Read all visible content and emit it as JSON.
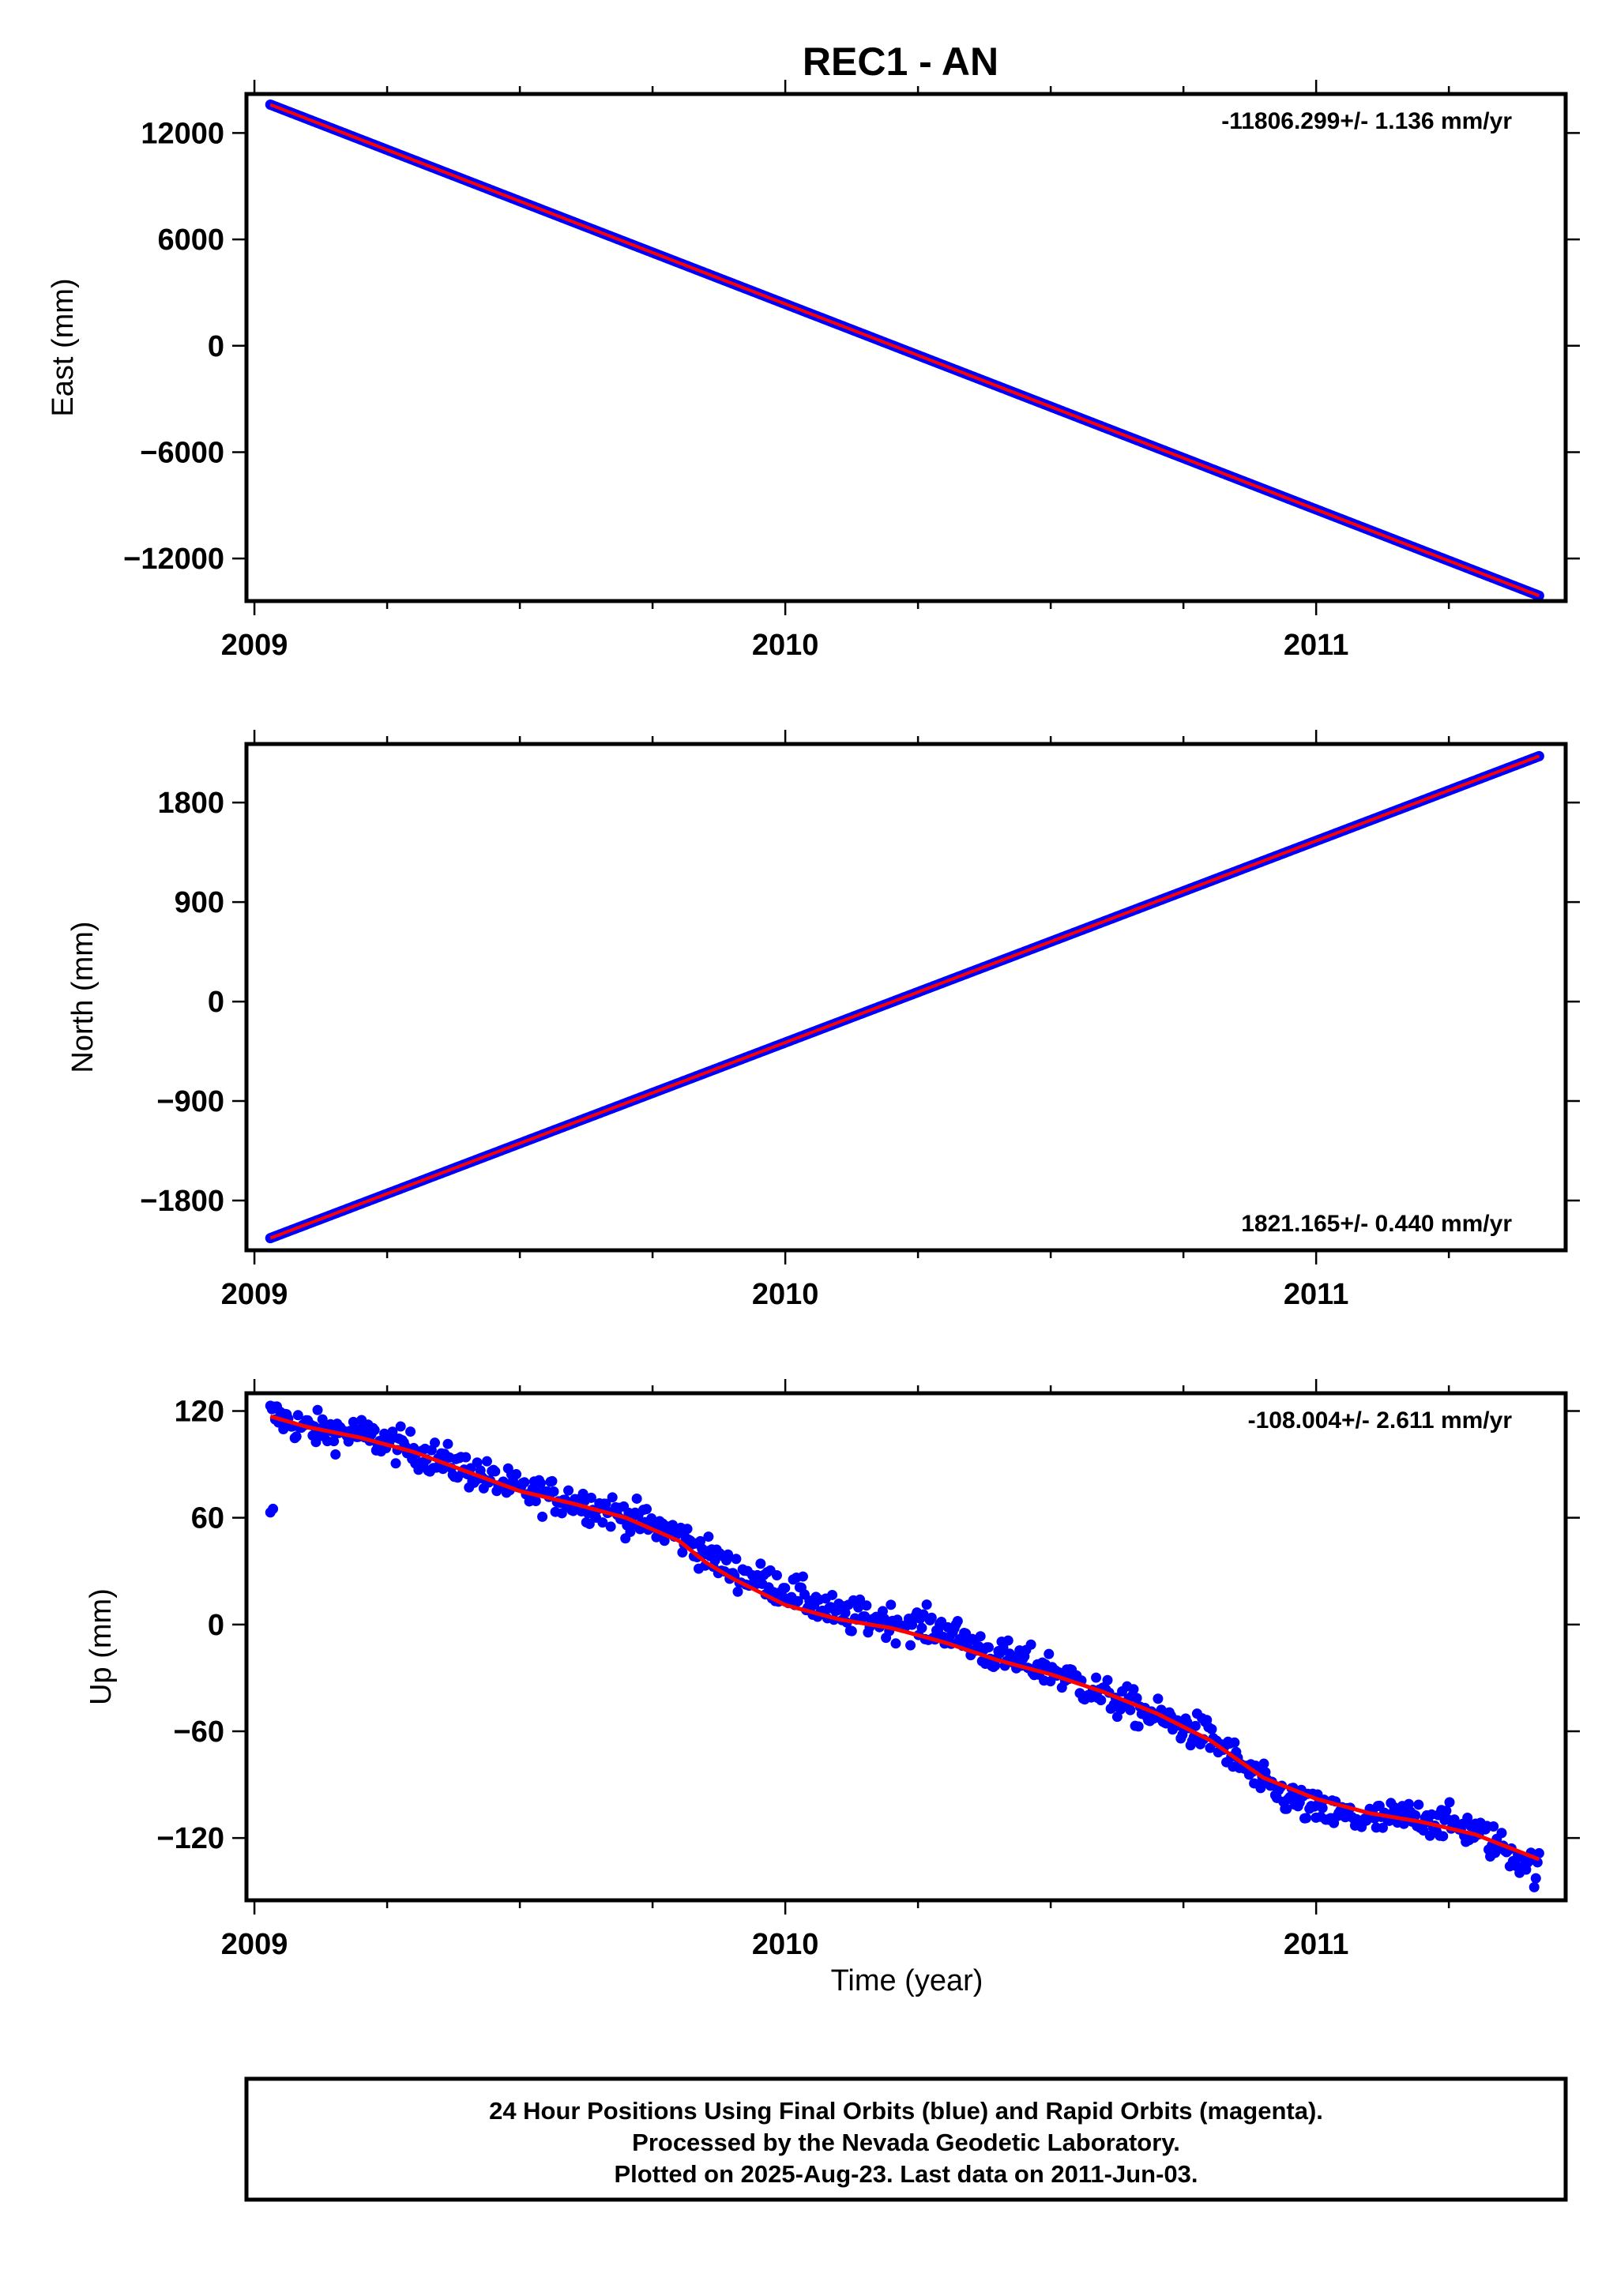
{
  "figure": {
    "title": "REC1 - AN",
    "xlabel": "Time (year)",
    "footer_lines": [
      "24 Hour Positions Using Final Orbits (blue) and Rapid Orbits (magenta).",
      "Processed by the Nevada Geodetic Laboratory.",
      "Plotted on 2025-Aug-23. Last data on 2011-Jun-03."
    ],
    "colors": {
      "data_points": "#0000ff",
      "model_line": "#ff0000",
      "frame": "#000000"
    }
  },
  "chart_data": [
    {
      "type": "scatter",
      "title": "REC1 - AN",
      "ylabel": "East (mm)",
      "rate_label": "-11806.299+/- 1.136 mm/yr",
      "rate_position": "top-right",
      "xlim": [
        2008.985,
        2011.47
      ],
      "ylim": [
        -14400,
        14200
      ],
      "x_ticks": [
        "2009",
        "2010",
        "2011"
      ],
      "y_ticks": [
        12000,
        6000,
        0,
        -6000,
        -12000
      ],
      "y_tick_labels": [
        "12000",
        "6000",
        "0",
        "−6000",
        "−12000"
      ],
      "series": [
        {
          "kind": "points",
          "x": [
            2009.03,
            2011.42
          ],
          "y": [
            13600,
            -14100
          ],
          "noise": 0
        },
        {
          "kind": "line",
          "x": [
            2009.03,
            2011.42
          ],
          "y": [
            13600,
            -14100
          ]
        }
      ]
    },
    {
      "type": "scatter",
      "title": "",
      "ylabel": "North (mm)",
      "rate_label": "1821.165+/- 0.440 mm/yr",
      "rate_position": "bottom-right",
      "xlim": [
        2008.985,
        2011.47
      ],
      "ylim": [
        -2250,
        2330
      ],
      "x_ticks": [
        "2009",
        "2010",
        "2011"
      ],
      "y_ticks": [
        1800,
        900,
        0,
        -900,
        -1800
      ],
      "y_tick_labels": [
        "1800",
        "900",
        "0",
        "−900",
        "−1800"
      ],
      "series": [
        {
          "kind": "points",
          "x": [
            2009.03,
            2011.42
          ],
          "y": [
            -2140,
            2220
          ],
          "noise": 0
        },
        {
          "kind": "line",
          "x": [
            2009.03,
            2011.42
          ],
          "y": [
            -2140,
            2220
          ]
        }
      ]
    },
    {
      "type": "scatter",
      "title": "",
      "ylabel": "Up (mm)",
      "xlabel": "Time (year)",
      "rate_label": "-108.004+/- 2.611 mm/yr",
      "rate_position": "top-right",
      "xlim": [
        2008.985,
        2011.47
      ],
      "ylim": [
        -155,
        130
      ],
      "x_ticks": [
        "2009",
        "2010",
        "2011"
      ],
      "y_ticks": [
        120,
        60,
        0,
        -60,
        -120
      ],
      "y_tick_labels": [
        "120",
        "60",
        "0",
        "−60",
        "−120"
      ],
      "series": [
        {
          "kind": "points",
          "x": [
            2009.03,
            2009.1,
            2009.2,
            2009.3,
            2009.4,
            2009.5,
            2009.6,
            2009.7,
            2009.8,
            2009.9,
            2010.0,
            2010.1,
            2010.2,
            2010.3,
            2010.4,
            2010.5,
            2010.6,
            2010.7,
            2010.8,
            2010.9,
            2011.0,
            2011.1,
            2011.2,
            2011.3,
            2011.42
          ],
          "y": [
            118,
            110,
            107,
            98,
            87,
            75,
            70,
            61,
            50,
            30,
            20,
            5,
            2,
            -3,
            -18,
            -25,
            -40,
            -52,
            -63,
            -90,
            -105,
            -110,
            -108,
            -116,
            -138
          ],
          "noise": 7
        },
        {
          "kind": "line",
          "x": [
            2009.03,
            2009.1,
            2009.2,
            2009.3,
            2009.4,
            2009.5,
            2009.6,
            2009.7,
            2009.8,
            2009.85,
            2009.9,
            2010.0,
            2010.1,
            2010.2,
            2010.3,
            2010.4,
            2010.5,
            2010.6,
            2010.7,
            2010.8,
            2010.9,
            2011.0,
            2011.1,
            2011.2,
            2011.3,
            2011.42
          ],
          "y": [
            117,
            111,
            105,
            97,
            86,
            75,
            68,
            60,
            47,
            35,
            26,
            11,
            3,
            -2,
            -10,
            -20,
            -28,
            -38,
            -50,
            -65,
            -86,
            -98,
            -106,
            -111,
            -118,
            -132
          ]
        }
      ]
    }
  ]
}
